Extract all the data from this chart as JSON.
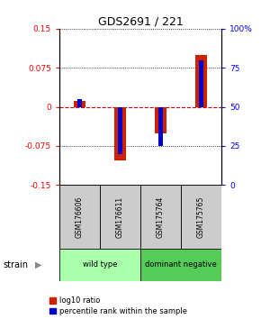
{
  "title": "GDS2691 / 221",
  "samples": [
    "GSM176606",
    "GSM176611",
    "GSM175764",
    "GSM175765"
  ],
  "log10_ratio": [
    0.012,
    -0.103,
    -0.05,
    0.1
  ],
  "percentile_rank": [
    55,
    20,
    25,
    80
  ],
  "ylim_left": [
    -0.15,
    0.15
  ],
  "ylim_right": [
    0,
    100
  ],
  "yticks_left": [
    -0.15,
    -0.075,
    0,
    0.075,
    0.15
  ],
  "yticks_right": [
    0,
    25,
    50,
    75,
    100
  ],
  "ytick_labels_left": [
    "-0.15",
    "-0.075",
    "0",
    "0.075",
    "0.15"
  ],
  "ytick_labels_right": [
    "0",
    "25",
    "50",
    "75",
    "100%"
  ],
  "groups": [
    {
      "label": "wild type",
      "span": [
        0,
        2
      ],
      "color": "#aaffaa"
    },
    {
      "label": "dominant negative",
      "span": [
        2,
        4
      ],
      "color": "#55cc55"
    }
  ],
  "strain_label": "strain",
  "red_color": "#cc2200",
  "blue_color": "#0000cc",
  "zero_line_color": "#cc0000",
  "sample_box_color": "#cccccc",
  "legend_red_label": "log10 ratio",
  "legend_blue_label": "percentile rank within the sample",
  "bg_color": "#ffffff"
}
